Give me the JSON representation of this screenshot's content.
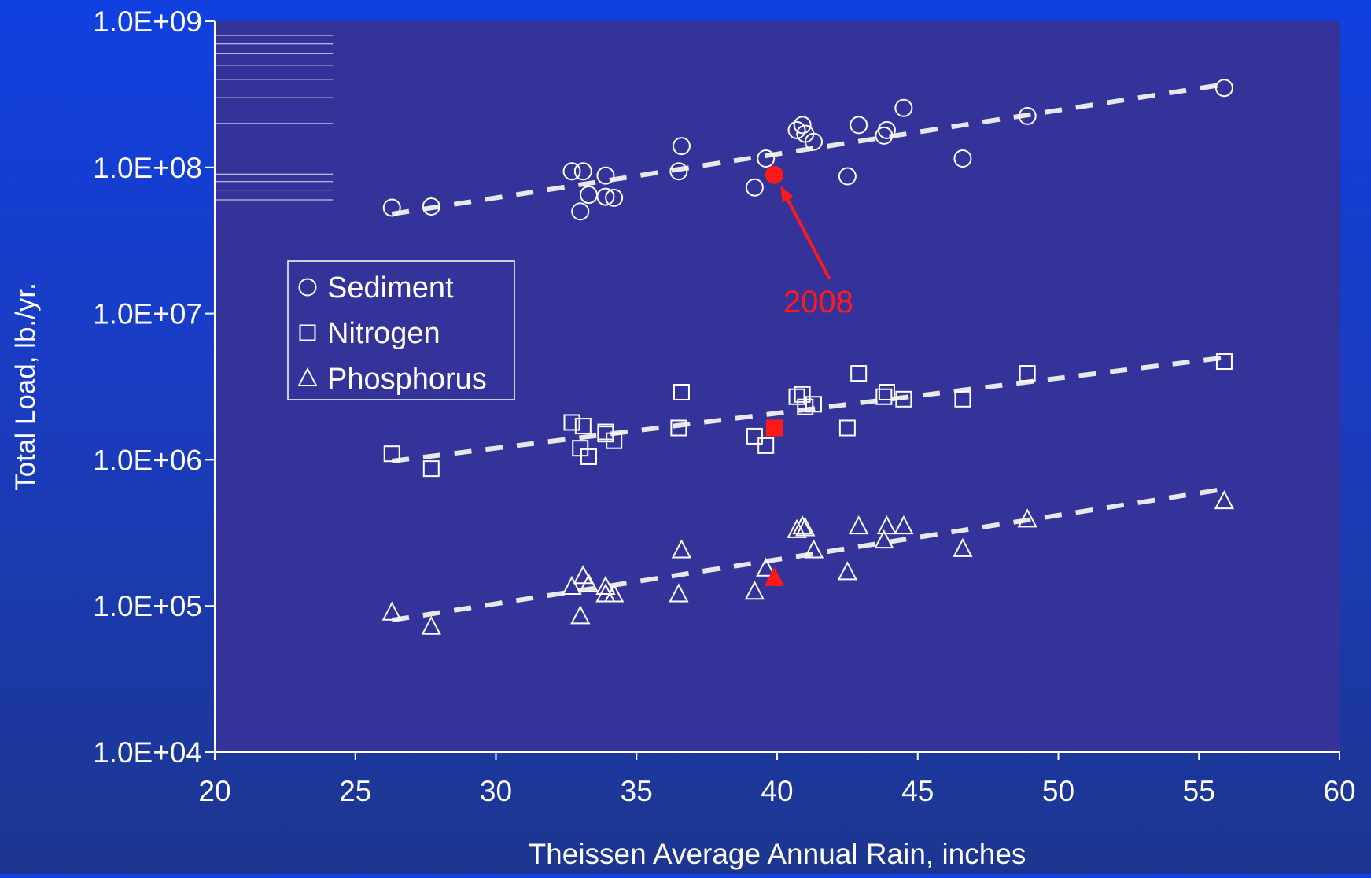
{
  "chart_data": {
    "type": "scatter",
    "xlabel": "Theissen Average Annual Rain, inches",
    "ylabel": "Total Load, lb./yr.",
    "xlim": [
      20,
      60
    ],
    "ylim": [
      10000,
      1000000000
    ],
    "y_scale": "log",
    "x_ticks": [
      "20",
      "25",
      "30",
      "35",
      "40",
      "45",
      "50",
      "55",
      "60"
    ],
    "y_ticks": [
      "1.0E+04",
      "1.0E+05",
      "1.0E+06",
      "1.0E+07",
      "1.0E+08",
      "1.0E+09"
    ],
    "legend_position": "left",
    "highlight": {
      "label": "2008",
      "x": 39.9,
      "color": "#ff1a1a"
    },
    "colors": {
      "plot_bg": "#333399",
      "marker": "#ffffff",
      "highlight": "#ff1a1a"
    },
    "trend_style": "dashed",
    "series": [
      {
        "name": "Sediment",
        "marker": "circle",
        "x": [
          26.3,
          27.7,
          32.7,
          33.1,
          33.0,
          33.3,
          33.9,
          33.9,
          34.2,
          36.5,
          36.6,
          39.2,
          39.6,
          40.7,
          40.9,
          41.0,
          41.3,
          42.5,
          42.9,
          43.8,
          43.9,
          44.5,
          46.6,
          48.9,
          55.9
        ],
        "y": [
          53000000,
          54000000,
          94000000,
          94000000,
          50000000,
          65000000,
          88000000,
          63000000,
          62000000,
          94000000,
          140000000,
          73000000,
          115000000,
          180000000,
          195000000,
          170000000,
          150000000,
          87000000,
          195000000,
          165000000,
          180000000,
          255000000,
          115000000,
          225000000,
          350000000
        ],
        "trend": {
          "x": [
            26.3,
            55.9
          ],
          "y": [
            48000000,
            370000000
          ]
        },
        "highlight_y": 89000000
      },
      {
        "name": "Nitrogen",
        "marker": "square",
        "x": [
          26.3,
          27.7,
          32.7,
          33.1,
          33.0,
          33.3,
          33.9,
          33.9,
          34.2,
          36.5,
          36.6,
          39.2,
          39.6,
          40.7,
          40.9,
          41.0,
          41.3,
          42.5,
          42.9,
          43.8,
          43.9,
          44.5,
          46.6,
          48.9,
          55.9
        ],
        "y": [
          1100000,
          870000,
          1800000,
          1700000,
          1200000,
          1050000,
          1550000,
          1500000,
          1350000,
          1650000,
          2900000,
          1450000,
          1250000,
          2700000,
          2800000,
          2300000,
          2400000,
          1650000,
          3900000,
          2700000,
          2900000,
          2600000,
          2600000,
          3900000,
          4700000
        ],
        "trend": {
          "x": [
            26.3,
            55.9
          ],
          "y": [
            980000,
            5000000
          ]
        },
        "highlight_y": 1650000
      },
      {
        "name": "Phosphorus",
        "marker": "triangle",
        "x": [
          26.3,
          27.7,
          32.7,
          33.1,
          33.0,
          33.3,
          33.9,
          33.9,
          34.2,
          36.5,
          36.6,
          39.2,
          39.6,
          40.7,
          40.9,
          41.0,
          41.3,
          42.5,
          42.9,
          43.8,
          43.9,
          44.5,
          46.6,
          48.9,
          55.9
        ],
        "y": [
          90000,
          72000,
          135000,
          160000,
          85000,
          140000,
          135000,
          120000,
          120000,
          120000,
          240000,
          125000,
          180000,
          330000,
          350000,
          340000,
          240000,
          170000,
          350000,
          280000,
          350000,
          350000,
          245000,
          390000,
          520000
        ],
        "trend": {
          "x": [
            26.3,
            55.9
          ],
          "y": [
            80000,
            630000
          ]
        },
        "highlight_y": 155000
      }
    ]
  }
}
